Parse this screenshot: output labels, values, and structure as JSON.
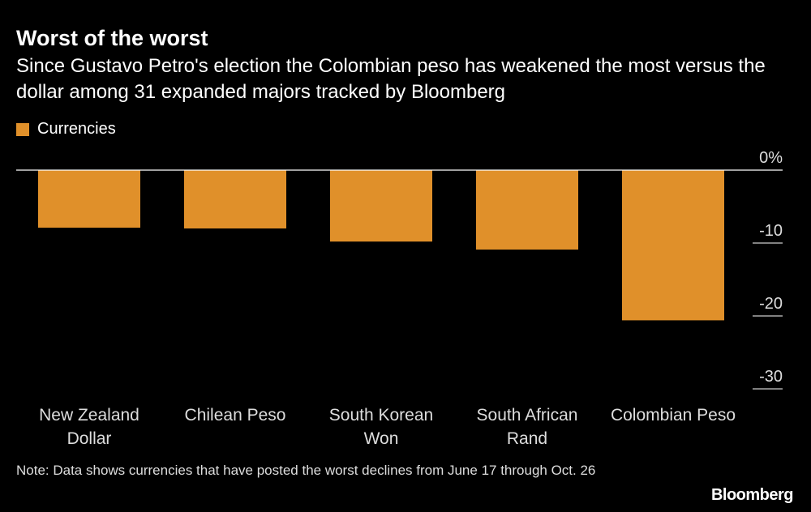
{
  "chart_data": {
    "type": "bar",
    "title": "Worst of the worst",
    "subtitle": "Since Gustavo Petro's election the Colombian peso has weakened the most versus the dollar among 31 expanded majors tracked by Bloomberg",
    "categories": [
      "New Zealand\nDollar",
      "Chilean Peso",
      "South Korean\nWon",
      "South African\nRand",
      "Colombian Peso"
    ],
    "series": [
      {
        "name": "Currencies",
        "color": "#e0902a",
        "values": [
          -7.9,
          -8.0,
          -9.8,
          -10.9,
          -20.6
        ]
      }
    ],
    "ylim": [
      -30,
      0
    ],
    "yticks": [
      {
        "value": 0,
        "label": "0%"
      },
      -10,
      -20,
      -30
    ],
    "note": "Note: Data shows currencies that have posted the worst declines from June 17 through Oct. 26",
    "source": "Bloomberg"
  }
}
